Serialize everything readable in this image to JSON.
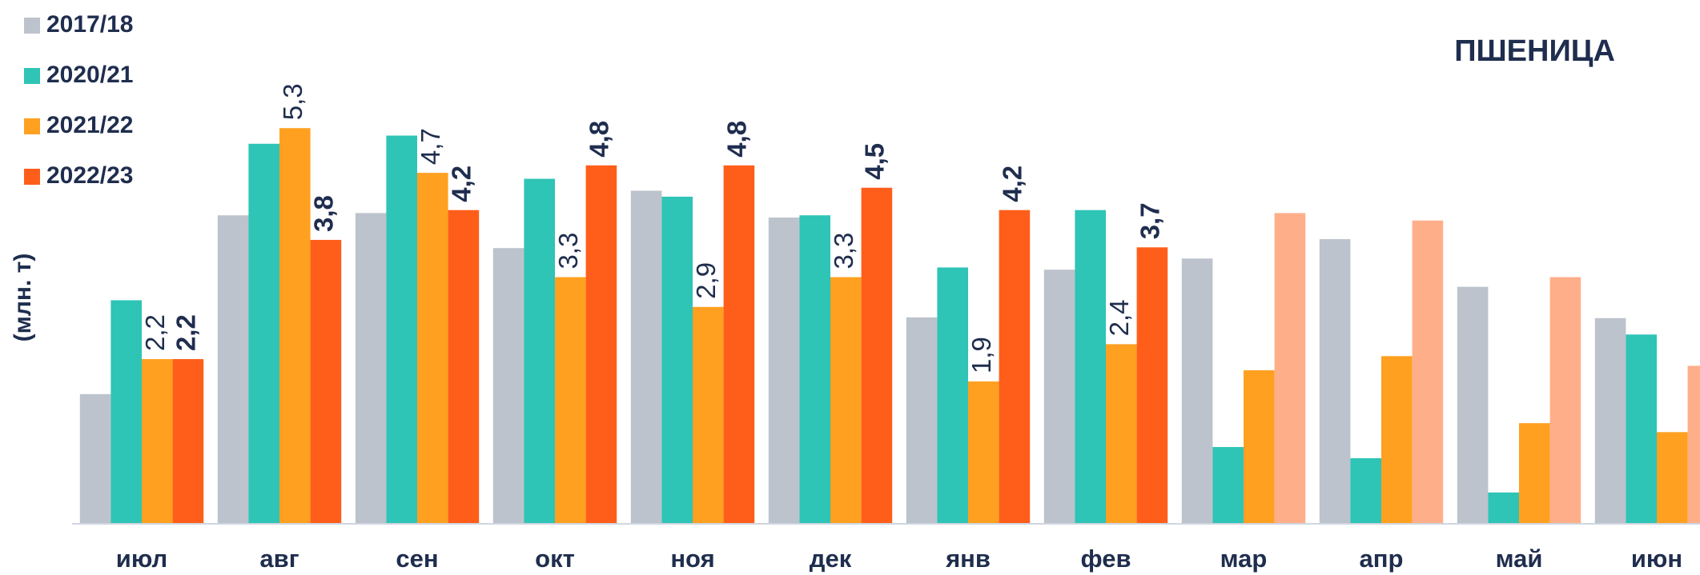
{
  "chart_data": {
    "type": "bar",
    "title": "ПШЕНИЦА",
    "y_label": "(млн. т)",
    "categories": [
      "июл",
      "авг",
      "сен",
      "окт",
      "ноя",
      "дек",
      "янв",
      "фев",
      "мар",
      "апр",
      "май",
      "июн"
    ],
    "ylim": [
      0,
      6
    ],
    "grid": false,
    "series": [
      {
        "name": "2017/18",
        "color": "#bcc3cc",
        "values": [
          1.73,
          4.13,
          4.16,
          3.69,
          4.46,
          4.1,
          2.76,
          3.4,
          3.55,
          3.81,
          3.17,
          2.75
        ]
      },
      {
        "name": "2020/21",
        "color": "#2ec4b6",
        "values": [
          2.99,
          5.09,
          5.2,
          4.62,
          4.38,
          4.13,
          3.43,
          4.2,
          1.02,
          0.87,
          0.41,
          2.53
        ]
      },
      {
        "name": "2021/22",
        "color": "#ffa020",
        "values": [
          2.2,
          5.3,
          4.7,
          3.3,
          2.9,
          3.3,
          1.9,
          2.4,
          2.05,
          2.24,
          1.34,
          1.22
        ],
        "value_labels": [
          "2,2",
          "5,3",
          "4,7",
          "3,3",
          "2,9",
          "3,3",
          "1,9",
          "2,4",
          null,
          null,
          null,
          null
        ]
      },
      {
        "name": "2022/23",
        "color": "#ff5e1a",
        "values": [
          2.2,
          3.8,
          4.2,
          4.8,
          4.8,
          4.5,
          4.2,
          3.7,
          4.16,
          4.06,
          3.3,
          2.11
        ],
        "point_colors": [
          "#ff5e1a",
          "#ff5e1a",
          "#ff5e1a",
          "#ff5e1a",
          "#ff5e1a",
          "#ff5e1a",
          "#ff5e1a",
          "#ff5e1a",
          "#ffae8a",
          "#ffae8a",
          "#ffae8a",
          "#ffae8a"
        ],
        "value_labels": [
          "2,2",
          "3,8",
          "4,2",
          "4,8",
          "4,8",
          "4,5",
          "4,2",
          "3,7",
          null,
          null,
          null,
          null
        ]
      }
    ]
  }
}
